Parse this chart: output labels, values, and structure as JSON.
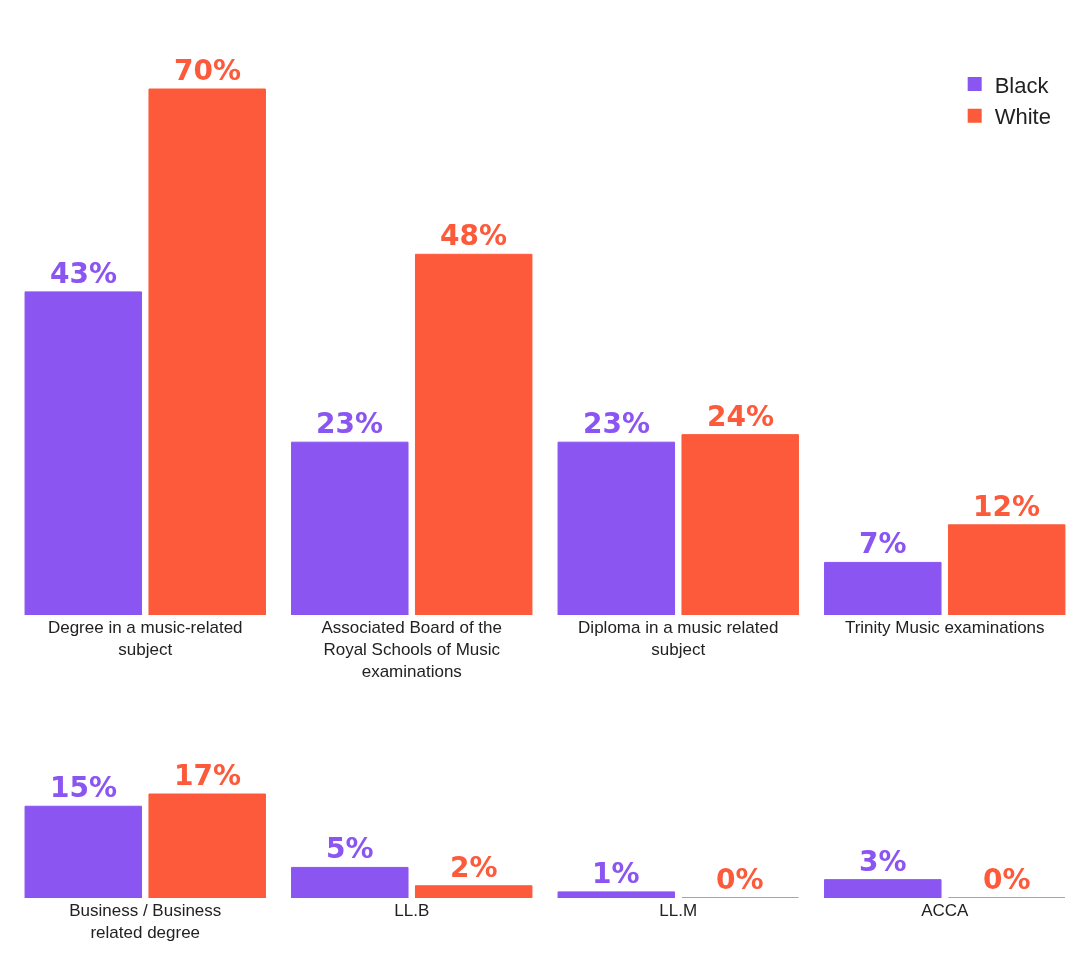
{
  "chart_data": [
    {
      "type": "bar",
      "categories": [
        "Degree in a music-related subject",
        "Associated Board of the Royal Schools of Music examinations",
        "Diploma in a music related subject",
        "Trinity Music examinations"
      ],
      "series": [
        {
          "name": "Black",
          "color": "#8b55f2",
          "values": [
            43,
            23,
            23,
            7
          ],
          "value_labels": [
            "43%",
            "23%",
            "23%",
            "7%"
          ]
        },
        {
          "name": "White",
          "color": "#fc5a3a",
          "values": [
            70,
            48,
            24,
            12
          ],
          "value_labels": [
            "70%",
            "48%",
            "24%",
            "12%"
          ]
        }
      ],
      "legend": "top right",
      "grid": false
    },
    {
      "type": "bar",
      "categories": [
        "Business / Business related degree",
        "LL.B",
        "LL.M",
        "ACCA"
      ],
      "series": [
        {
          "color": "#8b55f2",
          "values": [
            15,
            5,
            1,
            3
          ],
          "value_labels": [
            "15%",
            "5%",
            "1%",
            "3%"
          ]
        },
        {
          "color": "#fc5a3a",
          "values": [
            17,
            2,
            0,
            0
          ],
          "value_labels": [
            "17%",
            "2%",
            "0%",
            "0%"
          ]
        }
      ],
      "legend": false,
      "grid": false
    }
  ]
}
